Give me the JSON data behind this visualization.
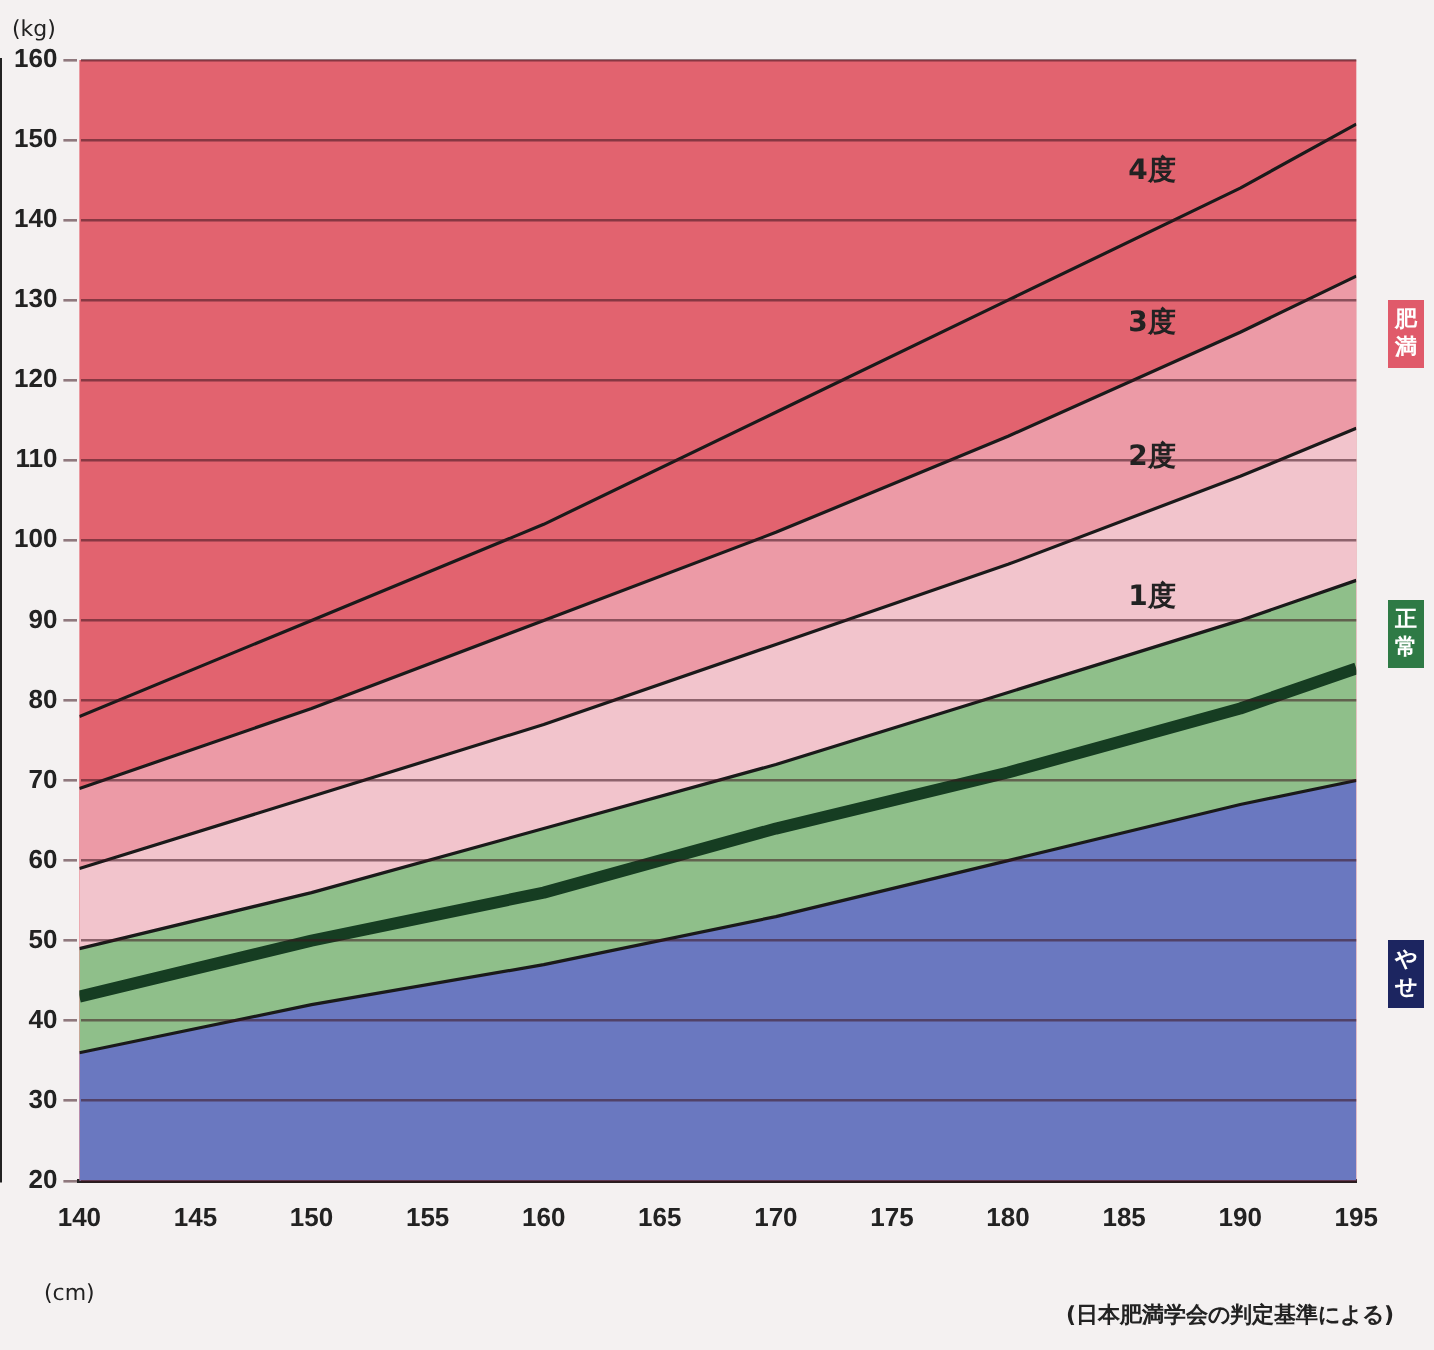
{
  "chart_data": {
    "type": "line",
    "xlabel": "(cm)",
    "ylabel": "(kg)",
    "x": [
      140,
      150,
      160,
      170,
      180,
      190,
      195
    ],
    "xlim": [
      140,
      195
    ],
    "xticks": [
      140,
      145,
      150,
      155,
      160,
      165,
      170,
      175,
      180,
      185,
      190,
      195
    ],
    "ylim": [
      20,
      160
    ],
    "yticks": [
      20,
      30,
      40,
      50,
      60,
      70,
      80,
      90,
      100,
      110,
      120,
      130,
      140,
      150,
      160
    ],
    "grid": "y",
    "legend": false,
    "marker": "none",
    "series": [
      {
        "type": "area",
        "color": "#6a78c0",
        "values": [
          36,
          42,
          47,
          53,
          60,
          67,
          70
        ]
      },
      {
        "type": "area",
        "color": "#8fbf8a",
        "values": [
          49,
          56,
          64,
          72,
          81,
          90,
          95
        ]
      },
      {
        "type": "area",
        "color": "#f2c4cc",
        "values": [
          59,
          68,
          77,
          87,
          97,
          108,
          114
        ]
      },
      {
        "type": "area",
        "color": "#ec9aa6",
        "values": [
          69,
          79,
          90,
          101,
          113,
          126,
          133
        ]
      },
      {
        "type": "area",
        "color": "#e2636f",
        "values": [
          78,
          90,
          102,
          116,
          130,
          144,
          152
        ]
      },
      {
        "color": "#163d22",
        "values": [
          43,
          50,
          56,
          64,
          71,
          79,
          84
        ]
      }
    ],
    "annotations": [
      "4度",
      "3度",
      "2度",
      "1度",
      "肥満",
      "正常",
      "やせ",
      "(日本肥満学会の判定基準による)"
    ]
  }
}
